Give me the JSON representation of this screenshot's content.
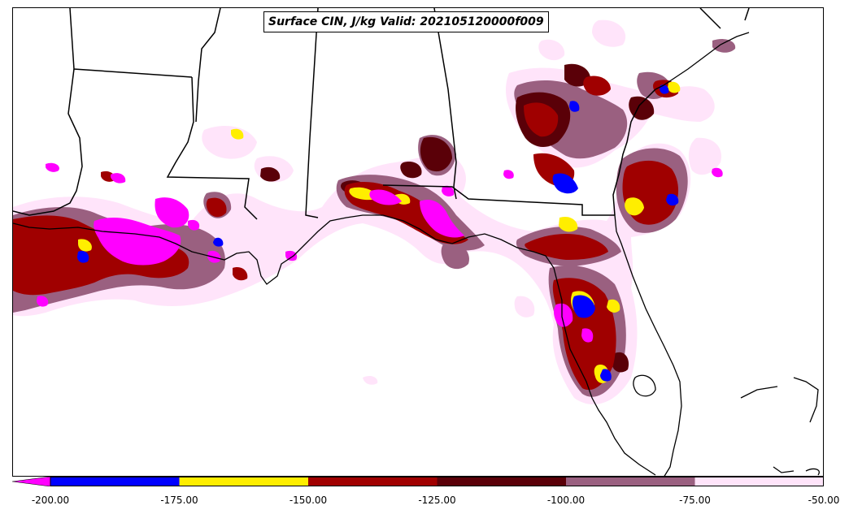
{
  "title": "Surface CIN, J/kg Valid: 202105120000f009",
  "colorbar": {
    "ticks": [
      "-200.00",
      "-175.00",
      "-150.00",
      "-125.00",
      "-100.00",
      "-75.00",
      "-50.00"
    ],
    "bins": [
      {
        "from": -200,
        "to": -175,
        "color": "#0000ff"
      },
      {
        "from": -175,
        "to": -150,
        "color": "#ffee00"
      },
      {
        "from": -150,
        "to": -125,
        "color": "#a00000"
      },
      {
        "from": -125,
        "to": -100,
        "color": "#5a0008"
      },
      {
        "from": -100,
        "to": -75,
        "color": "#9a6080"
      },
      {
        "from": -75,
        "to": -50,
        "color": "#ffe4fa"
      }
    ],
    "under_color": "#ff00ff"
  },
  "colors": {
    "lightpink": "#ffe4fa",
    "mauve": "#9a6080",
    "darkred": "#5a0008",
    "red": "#a00000",
    "yellow": "#ffee00",
    "blue": "#0000ff",
    "magenta": "#ff00ff"
  }
}
